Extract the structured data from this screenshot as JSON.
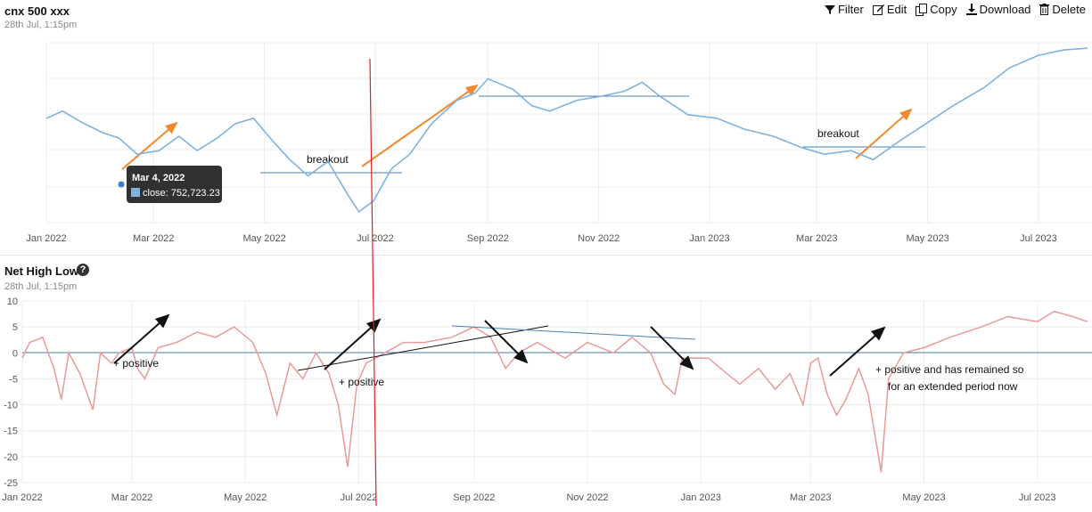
{
  "panel1": {
    "title": "cnx 500 xxx",
    "subtitle": "28th Jul, 1:15pm",
    "toolbar": [
      {
        "label": "Filter",
        "icon": "filter-icon"
      },
      {
        "label": "Edit",
        "icon": "edit-icon"
      },
      {
        "label": "Copy",
        "icon": "copy-icon"
      },
      {
        "label": "Download",
        "icon": "download-icon"
      },
      {
        "label": "Delete",
        "icon": "trash-icon"
      }
    ],
    "tooltip": {
      "date": "Mar 4, 2022",
      "value_text": "close: 752,723.23"
    },
    "annotations": [
      "breakout",
      "breakout"
    ]
  },
  "panel2": {
    "title": "Net High Low",
    "subtitle": "28th Jul, 1:15pm",
    "annotations": [
      "+ positive",
      "+ positive",
      "+ positive  and has remained so",
      "for an extended period now"
    ]
  },
  "colors": {
    "price_line": "#7fb2de",
    "nethighlow_line": "#e89a9a",
    "support_line": "#4a7fb5",
    "trend_arrow": "#f08a2c",
    "marker_line": "#e02020",
    "annotation_arrow": "#111111"
  },
  "chart_data": [
    {
      "type": "line",
      "series": [
        {
          "name": "close",
          "values": [
            [
              "2022-01-01",
              0.58
            ],
            [
              "2022-01-10",
              0.62
            ],
            [
              "2022-01-20",
              0.56
            ],
            [
              "2022-02-01",
              0.5
            ],
            [
              "2022-02-10",
              0.47
            ],
            [
              "2022-02-20",
              0.38
            ],
            [
              "2022-03-04",
              0.4
            ],
            [
              "2022-03-15",
              0.48
            ],
            [
              "2022-03-25",
              0.4
            ],
            [
              "2022-04-05",
              0.47
            ],
            [
              "2022-04-15",
              0.55
            ],
            [
              "2022-04-25",
              0.58
            ],
            [
              "2022-05-05",
              0.46
            ],
            [
              "2022-05-15",
              0.35
            ],
            [
              "2022-05-25",
              0.26
            ],
            [
              "2022-06-05",
              0.34
            ],
            [
              "2022-06-15",
              0.17
            ],
            [
              "2022-06-22",
              0.06
            ],
            [
              "2022-06-30",
              0.12
            ],
            [
              "2022-07-10",
              0.3
            ],
            [
              "2022-07-20",
              0.38
            ],
            [
              "2022-08-01",
              0.55
            ],
            [
              "2022-08-15",
              0.68
            ],
            [
              "2022-08-25",
              0.72
            ],
            [
              "2022-09-01",
              0.8
            ],
            [
              "2022-09-15",
              0.74
            ],
            [
              "2022-09-25",
              0.65
            ],
            [
              "2022-10-05",
              0.62
            ],
            [
              "2022-10-20",
              0.68
            ],
            [
              "2022-11-01",
              0.7
            ],
            [
              "2022-11-15",
              0.73
            ],
            [
              "2022-11-25",
              0.78
            ],
            [
              "2022-12-05",
              0.7
            ],
            [
              "2022-12-20",
              0.6
            ],
            [
              "2023-01-05",
              0.58
            ],
            [
              "2023-01-20",
              0.52
            ],
            [
              "2023-02-05",
              0.48
            ],
            [
              "2023-02-20",
              0.42
            ],
            [
              "2023-03-05",
              0.38
            ],
            [
              "2023-03-20",
              0.4
            ],
            [
              "2023-04-01",
              0.35
            ],
            [
              "2023-04-15",
              0.45
            ],
            [
              "2023-04-30",
              0.55
            ],
            [
              "2023-05-15",
              0.65
            ],
            [
              "2023-06-01",
              0.75
            ],
            [
              "2023-06-15",
              0.86
            ],
            [
              "2023-07-01",
              0.93
            ],
            [
              "2023-07-15",
              0.96
            ],
            [
              "2023-07-28",
              0.97
            ]
          ]
        }
      ],
      "x_tick_labels": [
        "Jan 2022",
        "Mar 2022",
        "May 2022",
        "Jul 2022",
        "Sep 2022",
        "Nov 2022",
        "Jan 2023",
        "Mar 2023",
        "May 2023",
        "Jul 2023"
      ],
      "grid": true,
      "note": "y-axis tick labels are not printed; values are relative (0-1)"
    },
    {
      "type": "line",
      "series": [
        {
          "name": "Net High Low",
          "values": [
            [
              "2022-01-01",
              -1
            ],
            [
              "2022-01-05",
              2
            ],
            [
              "2022-01-12",
              3
            ],
            [
              "2022-01-18",
              -3
            ],
            [
              "2022-01-22",
              -9
            ],
            [
              "2022-01-26",
              0
            ],
            [
              "2022-02-01",
              -4
            ],
            [
              "2022-02-05",
              -8
            ],
            [
              "2022-02-08",
              -11
            ],
            [
              "2022-02-12",
              0
            ],
            [
              "2022-02-18",
              -2
            ],
            [
              "2022-02-22",
              0
            ],
            [
              "2022-03-01",
              1
            ],
            [
              "2022-03-04",
              -3
            ],
            [
              "2022-03-08",
              -5
            ],
            [
              "2022-03-15",
              1
            ],
            [
              "2022-03-25",
              2
            ],
            [
              "2022-04-05",
              4
            ],
            [
              "2022-04-15",
              3
            ],
            [
              "2022-04-25",
              5
            ],
            [
              "2022-05-05",
              2
            ],
            [
              "2022-05-12",
              -4
            ],
            [
              "2022-05-18",
              -12
            ],
            [
              "2022-05-25",
              -2
            ],
            [
              "2022-06-01",
              -5
            ],
            [
              "2022-06-08",
              0
            ],
            [
              "2022-06-15",
              -4
            ],
            [
              "2022-06-20",
              -10
            ],
            [
              "2022-06-25",
              -22
            ],
            [
              "2022-06-30",
              -6
            ],
            [
              "2022-07-05",
              -2
            ],
            [
              "2022-07-15",
              0
            ],
            [
              "2022-07-25",
              2
            ],
            [
              "2022-08-05",
              2
            ],
            [
              "2022-08-20",
              3
            ],
            [
              "2022-09-01",
              5
            ],
            [
              "2022-09-10",
              3
            ],
            [
              "2022-09-18",
              -3
            ],
            [
              "2022-09-25",
              0
            ],
            [
              "2022-10-05",
              2
            ],
            [
              "2022-10-20",
              -1
            ],
            [
              "2022-11-01",
              2
            ],
            [
              "2022-11-15",
              0
            ],
            [
              "2022-11-25",
              3
            ],
            [
              "2022-12-05",
              0
            ],
            [
              "2022-12-12",
              -6
            ],
            [
              "2022-12-18",
              -8
            ],
            [
              "2022-12-22",
              -1
            ],
            [
              "2023-01-05",
              -1
            ],
            [
              "2023-01-15",
              -4
            ],
            [
              "2023-01-22",
              -6
            ],
            [
              "2023-02-01",
              -3
            ],
            [
              "2023-02-10",
              -7
            ],
            [
              "2023-02-18",
              -4
            ],
            [
              "2023-02-25",
              -10
            ],
            [
              "2023-03-01",
              -2
            ],
            [
              "2023-03-05",
              -1
            ],
            [
              "2023-03-10",
              -8
            ],
            [
              "2023-03-15",
              -12
            ],
            [
              "2023-03-20",
              -9
            ],
            [
              "2023-03-27",
              -3
            ],
            [
              "2023-04-01",
              -8
            ],
            [
              "2023-04-08",
              -23
            ],
            [
              "2023-04-12",
              -5
            ],
            [
              "2023-04-20",
              0
            ],
            [
              "2023-05-01",
              1
            ],
            [
              "2023-05-15",
              3
            ],
            [
              "2023-06-01",
              5
            ],
            [
              "2023-06-15",
              7
            ],
            [
              "2023-07-01",
              6
            ],
            [
              "2023-07-10",
              8
            ],
            [
              "2023-07-20",
              7
            ],
            [
              "2023-07-28",
              6
            ]
          ]
        }
      ],
      "x_tick_labels": [
        "Jan 2022",
        "Mar 2022",
        "May 2022",
        "Jul 2022",
        "Sep 2022",
        "Nov 2022",
        "Jan 2023",
        "Mar 2023",
        "May 2023",
        "Jul 2023"
      ],
      "y_tick_labels": [
        "10",
        "5",
        "0",
        "-5",
        "-10",
        "-15",
        "-20",
        "-25"
      ],
      "ylim": [
        -25,
        10
      ],
      "grid": true
    }
  ]
}
